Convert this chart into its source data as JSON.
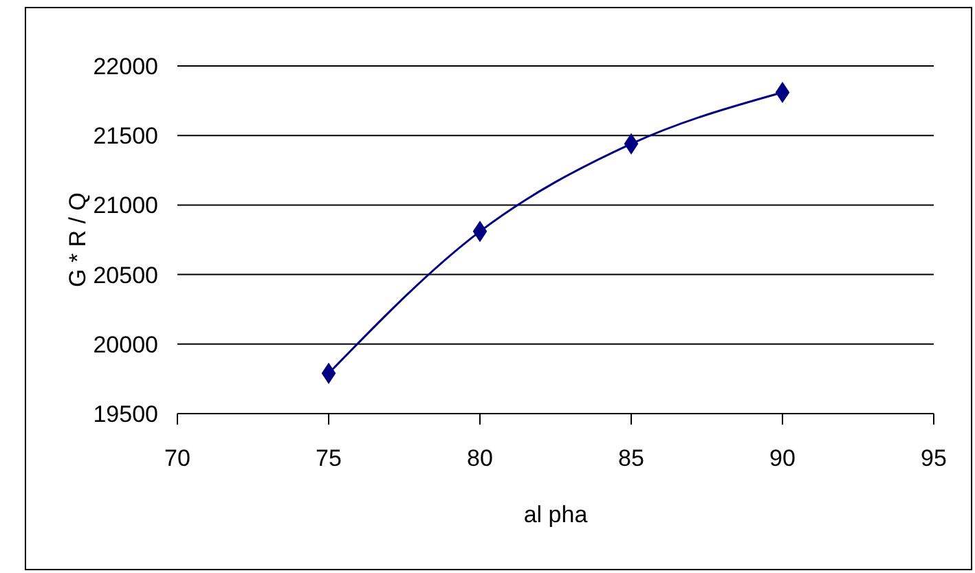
{
  "chart_data": {
    "type": "line",
    "xlabel": "al pha",
    "ylabel": "G * R / Q",
    "x": [
      75,
      80,
      85,
      90
    ],
    "series": [
      {
        "color": "#000080",
        "values": [
          19790,
          20810,
          21440,
          21810
        ]
      }
    ],
    "xlim": [
      70,
      95
    ],
    "xticks": [
      70,
      75,
      80,
      85,
      90,
      95
    ],
    "ylim": [
      19500,
      22000
    ],
    "yticks": [
      19500,
      20000,
      20500,
      21000,
      21500,
      22000
    ],
    "grid": "y",
    "marker": "diamond"
  }
}
